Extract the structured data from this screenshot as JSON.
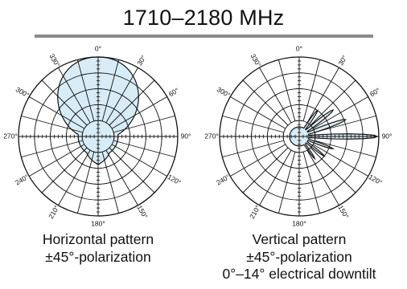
{
  "title": "1710–2180 MHz",
  "angle_labels": [
    "0°",
    "30°",
    "60°",
    "90°",
    "120°",
    "150°",
    "180°",
    "210°",
    "240°",
    "270°",
    "300°",
    "330°"
  ],
  "colors": {
    "fill": "#d7ecf6",
    "line": "#111111",
    "rule": "#8a8a8a"
  },
  "plots": [
    {
      "caption": [
        "Horizontal pattern",
        "±45°-polarization"
      ],
      "pattern_type": "horizontal"
    },
    {
      "caption": [
        "Vertical pattern",
        "±45°-polarization",
        "0°–14° electrical downtilt"
      ],
      "pattern_type": "vertical"
    }
  ]
}
